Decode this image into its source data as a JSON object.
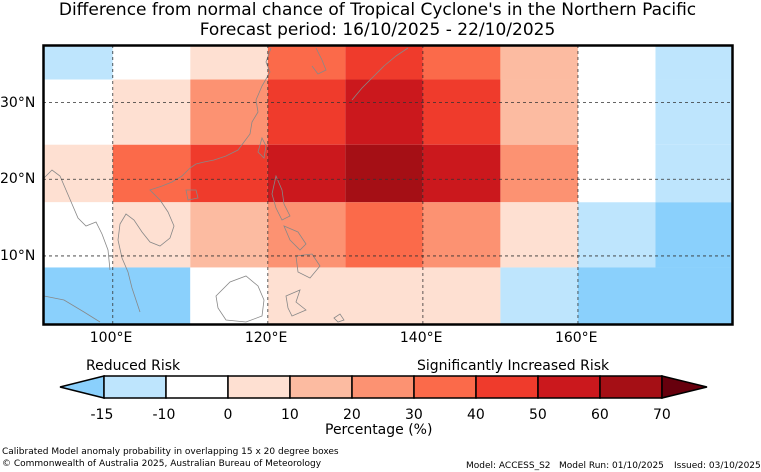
{
  "title_line1": "Difference from normal chance of Tropical Cyclone's in the Northern Pacific",
  "title_line2": "Forecast period: 16/10/2025 - 22/10/2025",
  "colors": {
    "-15": "#bee5fd",
    "-10": "#8ad0fc",
    "0": "#ffffff",
    "10": "#fee0d2",
    "20": "#fcbba1",
    "30": "#fc9272",
    "40": "#fb6a4a",
    "50": "#ef3b2c",
    "60": "#cb181d",
    "70": "#a50f15",
    "max": "#67000d"
  },
  "map": {
    "lon_ticks": [
      {
        "lon": 100,
        "label": "100°E"
      },
      {
        "lon": 120,
        "label": "120°E"
      },
      {
        "lon": 140,
        "label": "140°E"
      },
      {
        "lon": 160,
        "label": "160°E"
      }
    ],
    "lat_ticks": [
      {
        "lat": 30,
        "label": "30°N"
      },
      {
        "lat": 20,
        "label": "20°N"
      },
      {
        "lat": 10,
        "label": "10°N"
      }
    ],
    "lon_range": [
      91,
      180
    ],
    "lat_range": [
      1,
      37.5
    ],
    "cells": [
      {
        "lon0": 91,
        "lon1": 100,
        "lat0": 33,
        "lat1": 37.5,
        "cls": "-15"
      },
      {
        "lon0": 100,
        "lon1": 110,
        "lat0": 33,
        "lat1": 37.5,
        "cls": "0"
      },
      {
        "lon0": 110,
        "lon1": 120,
        "lat0": 33,
        "lat1": 37.5,
        "cls": "10"
      },
      {
        "lon0": 120,
        "lon1": 130,
        "lat0": 33,
        "lat1": 37.5,
        "cls": "40"
      },
      {
        "lon0": 130,
        "lon1": 140,
        "lat0": 33,
        "lat1": 37.5,
        "cls": "50"
      },
      {
        "lon0": 140,
        "lon1": 150,
        "lat0": 33,
        "lat1": 37.5,
        "cls": "40"
      },
      {
        "lon0": 150,
        "lon1": 160,
        "lat0": 33,
        "lat1": 37.5,
        "cls": "20"
      },
      {
        "lon0": 160,
        "lon1": 170,
        "lat0": 33,
        "lat1": 37.5,
        "cls": "0"
      },
      {
        "lon0": 170,
        "lon1": 180,
        "lat0": 33,
        "lat1": 37.5,
        "cls": "-15"
      },
      {
        "lon0": 91,
        "lon1": 100,
        "lat0": 24.5,
        "lat1": 33,
        "cls": "0"
      },
      {
        "lon0": 100,
        "lon1": 110,
        "lat0": 24.5,
        "lat1": 33,
        "cls": "10"
      },
      {
        "lon0": 110,
        "lon1": 120,
        "lat0": 24.5,
        "lat1": 33,
        "cls": "30"
      },
      {
        "lon0": 120,
        "lon1": 130,
        "lat0": 24.5,
        "lat1": 33,
        "cls": "50"
      },
      {
        "lon0": 130,
        "lon1": 140,
        "lat0": 24.5,
        "lat1": 33,
        "cls": "60"
      },
      {
        "lon0": 140,
        "lon1": 150,
        "lat0": 24.5,
        "lat1": 33,
        "cls": "50"
      },
      {
        "lon0": 150,
        "lon1": 160,
        "lat0": 24.5,
        "lat1": 33,
        "cls": "20"
      },
      {
        "lon0": 160,
        "lon1": 170,
        "lat0": 24.5,
        "lat1": 33,
        "cls": "0"
      },
      {
        "lon0": 170,
        "lon1": 180,
        "lat0": 24.5,
        "lat1": 33,
        "cls": "-15"
      },
      {
        "lon0": 91,
        "lon1": 100,
        "lat0": 17,
        "lat1": 24.5,
        "cls": "10"
      },
      {
        "lon0": 100,
        "lon1": 110,
        "lat0": 17,
        "lat1": 24.5,
        "cls": "40"
      },
      {
        "lon0": 110,
        "lon1": 120,
        "lat0": 17,
        "lat1": 24.5,
        "cls": "50"
      },
      {
        "lon0": 120,
        "lon1": 130,
        "lat0": 17,
        "lat1": 24.5,
        "cls": "60"
      },
      {
        "lon0": 130,
        "lon1": 140,
        "lat0": 17,
        "lat1": 24.5,
        "cls": "70"
      },
      {
        "lon0": 140,
        "lon1": 150,
        "lat0": 17,
        "lat1": 24.5,
        "cls": "60"
      },
      {
        "lon0": 150,
        "lon1": 160,
        "lat0": 17,
        "lat1": 24.5,
        "cls": "30"
      },
      {
        "lon0": 160,
        "lon1": 170,
        "lat0": 17,
        "lat1": 24.5,
        "cls": "0"
      },
      {
        "lon0": 170,
        "lon1": 180,
        "lat0": 17,
        "lat1": 24.5,
        "cls": "-15"
      },
      {
        "lon0": 91,
        "lon1": 100,
        "lat0": 8.5,
        "lat1": 17,
        "cls": "0"
      },
      {
        "lon0": 100,
        "lon1": 110,
        "lat0": 8.5,
        "lat1": 17,
        "cls": "10"
      },
      {
        "lon0": 110,
        "lon1": 120,
        "lat0": 8.5,
        "lat1": 17,
        "cls": "20"
      },
      {
        "lon0": 120,
        "lon1": 130,
        "lat0": 8.5,
        "lat1": 17,
        "cls": "30"
      },
      {
        "lon0": 130,
        "lon1": 140,
        "lat0": 8.5,
        "lat1": 17,
        "cls": "40"
      },
      {
        "lon0": 140,
        "lon1": 150,
        "lat0": 8.5,
        "lat1": 17,
        "cls": "30"
      },
      {
        "lon0": 150,
        "lon1": 160,
        "lat0": 8.5,
        "lat1": 17,
        "cls": "10"
      },
      {
        "lon0": 160,
        "lon1": 170,
        "lat0": 8.5,
        "lat1": 17,
        "cls": "-15"
      },
      {
        "lon0": 170,
        "lon1": 180,
        "lat0": 8.5,
        "lat1": 17,
        "cls": "-10"
      },
      {
        "lon0": 91,
        "lon1": 110,
        "lat0": 1,
        "lat1": 8.5,
        "cls": "-10"
      },
      {
        "lon0": 110,
        "lon1": 120,
        "lat0": 1,
        "lat1": 8.5,
        "cls": "0"
      },
      {
        "lon0": 120,
        "lon1": 150,
        "lat0": 1,
        "lat1": 8.5,
        "cls": "10"
      },
      {
        "lon0": 150,
        "lon1": 160,
        "lat0": 1,
        "lat1": 8.5,
        "cls": "-15"
      },
      {
        "lon0": 160,
        "lon1": 180,
        "lat0": 1,
        "lat1": 8.5,
        "cls": "-10"
      }
    ]
  },
  "colorbar": {
    "reduced_label": "Reduced Risk",
    "increased_label": "Significantly Increased Risk",
    "axis_label": "Percentage (%)",
    "ticks": [
      "-15",
      "-10",
      "0",
      "10",
      "20",
      "30",
      "40",
      "50",
      "60",
      "70"
    ]
  },
  "footer": {
    "caption": "Calibrated Model anomaly probability in overlapping 15 x 20 degree boxes",
    "copyright": "© Commonwealth of Australia 2025, Australian Bureau of Meteorology",
    "model": "Model: ACCESS_S2",
    "model_run": "Model Run: 01/10/2025",
    "issued": "Issued: 03/10/2025"
  }
}
